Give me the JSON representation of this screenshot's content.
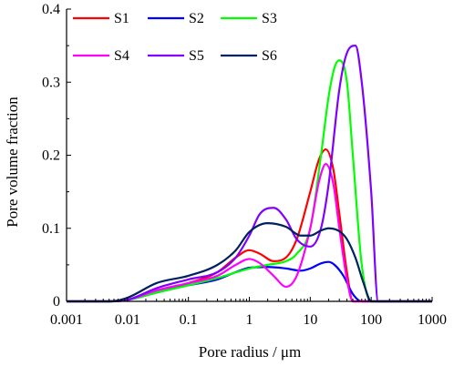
{
  "chart_data": {
    "type": "line",
    "title": "",
    "xlabel": "Pore radius / μm",
    "ylabel": "Pore volume fraction",
    "xscale": "log",
    "xlim": [
      0.001,
      1000
    ],
    "ylim": [
      0,
      0.4
    ],
    "xticks": [
      0.001,
      0.01,
      0.1,
      1,
      10,
      100,
      1000
    ],
    "xtick_labels": [
      "0.001",
      "0.01",
      "0.1",
      "1",
      "10",
      "100",
      "1000"
    ],
    "yticks": [
      0,
      0.1,
      0.2,
      0.3,
      0.4
    ],
    "ytick_labels": [
      "0",
      "0.1",
      "0.2",
      "0.3",
      "0.4"
    ],
    "grid": false,
    "legend": {
      "position": "top-left",
      "columns": 3
    },
    "series": [
      {
        "name": "S1",
        "color": "#ff0000",
        "x": [
          0.001,
          0.005,
          0.01,
          0.03,
          0.1,
          0.3,
          0.6,
          1,
          1.5,
          2.5,
          4,
          6,
          10,
          14,
          18,
          24,
          30,
          40,
          50,
          1000
        ],
        "y": [
          0,
          0,
          0.002,
          0.015,
          0.025,
          0.04,
          0.06,
          0.07,
          0.065,
          0.055,
          0.06,
          0.085,
          0.15,
          0.195,
          0.208,
          0.18,
          0.12,
          0.04,
          0,
          0
        ]
      },
      {
        "name": "S2",
        "color": "#0000ff",
        "x": [
          0.001,
          0.005,
          0.01,
          0.03,
          0.1,
          0.3,
          0.6,
          1,
          2,
          4,
          7,
          10,
          15,
          20,
          25,
          35,
          50,
          70,
          1000
        ],
        "y": [
          0,
          0,
          0.002,
          0.012,
          0.022,
          0.03,
          0.04,
          0.046,
          0.047,
          0.045,
          0.042,
          0.045,
          0.052,
          0.054,
          0.05,
          0.035,
          0.01,
          0,
          0
        ]
      },
      {
        "name": "S3",
        "color": "#00ff00",
        "x": [
          0.001,
          0.005,
          0.01,
          0.03,
          0.1,
          0.3,
          1,
          2,
          4,
          6,
          10,
          15,
          20,
          25,
          30,
          40,
          50,
          70,
          100,
          1000
        ],
        "y": [
          0,
          0,
          0.002,
          0.012,
          0.022,
          0.032,
          0.045,
          0.05,
          0.055,
          0.065,
          0.1,
          0.2,
          0.28,
          0.32,
          0.33,
          0.3,
          0.2,
          0.05,
          0,
          0
        ]
      },
      {
        "name": "S4",
        "color": "#ff00ff",
        "x": [
          0.001,
          0.005,
          0.01,
          0.03,
          0.1,
          0.3,
          0.6,
          1,
          1.5,
          2.5,
          4,
          6,
          10,
          14,
          18,
          24,
          30,
          40,
          50,
          1000
        ],
        "y": [
          0,
          0,
          0.002,
          0.015,
          0.025,
          0.035,
          0.05,
          0.058,
          0.052,
          0.035,
          0.02,
          0.035,
          0.1,
          0.165,
          0.188,
          0.16,
          0.1,
          0.03,
          0,
          0
        ]
      },
      {
        "name": "S5",
        "color": "#8000ff",
        "x": [
          0.001,
          0.005,
          0.01,
          0.03,
          0.1,
          0.3,
          0.6,
          1,
          1.5,
          2.5,
          4,
          6,
          10,
          15,
          20,
          30,
          40,
          55,
          70,
          100,
          130,
          1000
        ],
        "y": [
          0,
          0,
          0.002,
          0.018,
          0.03,
          0.04,
          0.06,
          0.09,
          0.12,
          0.128,
          0.112,
          0.085,
          0.075,
          0.1,
          0.16,
          0.29,
          0.34,
          0.35,
          0.3,
          0.15,
          0,
          0
        ]
      },
      {
        "name": "S6",
        "color": "#002060",
        "x": [
          0.001,
          0.005,
          0.01,
          0.03,
          0.1,
          0.3,
          0.6,
          1,
          2,
          4,
          7,
          10,
          15,
          20,
          30,
          40,
          55,
          75,
          100,
          1000
        ],
        "y": [
          0,
          0,
          0.005,
          0.025,
          0.035,
          0.05,
          0.07,
          0.095,
          0.107,
          0.102,
          0.09,
          0.09,
          0.097,
          0.1,
          0.096,
          0.085,
          0.06,
          0.025,
          0,
          0
        ]
      }
    ]
  }
}
